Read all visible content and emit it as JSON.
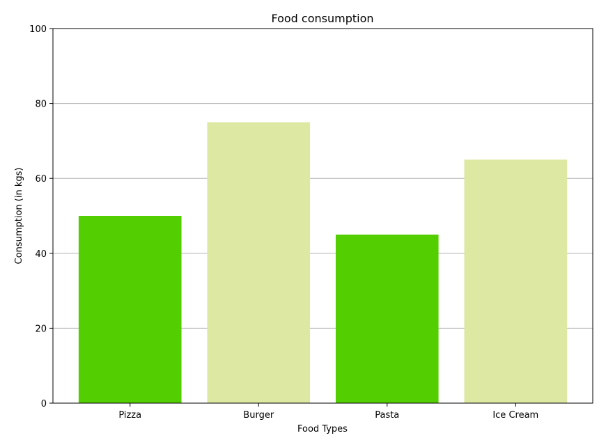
{
  "chart_data": {
    "type": "bar",
    "title": "Food consumption",
    "xlabel": "Food Types",
    "ylabel": "Consumption (in kgs)",
    "categories": [
      "Pizza",
      "Burger",
      "Pasta",
      "Ice Cream"
    ],
    "values": [
      50,
      75,
      45,
      65
    ],
    "bar_colors": [
      "#53cf01",
      "#dde8a3",
      "#53cf01",
      "#dde8a3"
    ],
    "ylim": [
      0,
      100
    ],
    "yticks": [
      0,
      20,
      40,
      60,
      80,
      100
    ],
    "grid": "horizontal",
    "grid_color": "#b0b0b0",
    "legend": "none"
  }
}
